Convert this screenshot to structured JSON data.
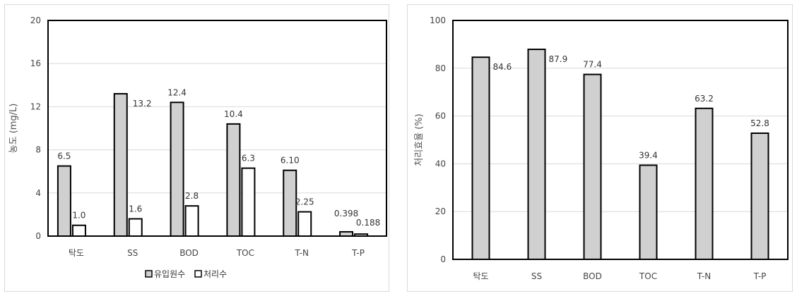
{
  "chart_data": [
    {
      "type": "bar",
      "ylabel": "농도 (mg/L)",
      "ylim": [
        0,
        20
      ],
      "yticks": [
        0,
        4,
        8,
        12,
        16,
        20
      ],
      "grid": true,
      "legend_position": "bottom",
      "categories": [
        "탁도",
        "SS",
        "BOD",
        "TOC",
        "T-N",
        "T-P"
      ],
      "series": [
        {
          "name": "유입원수",
          "color": "#d0d0d0",
          "values": [
            6.5,
            13.2,
            12.4,
            10.4,
            6.1,
            0.398
          ],
          "labels": [
            "6.5",
            "13.2",
            "12.4",
            "10.4",
            "6.10",
            "0.398"
          ]
        },
        {
          "name": "처리수",
          "color": "#ffffff",
          "values": [
            1.0,
            1.6,
            2.8,
            6.3,
            2.25,
            0.188
          ],
          "labels": [
            "1.0",
            "1.6",
            "2.8",
            "6.3",
            "2.25",
            "0.188"
          ]
        }
      ]
    },
    {
      "type": "bar",
      "ylabel": "처리효율 (%)",
      "ylim": [
        0,
        100
      ],
      "yticks": [
        0,
        20,
        40,
        60,
        80,
        100
      ],
      "grid": true,
      "categories": [
        "탁도",
        "SS",
        "BOD",
        "TOC",
        "T-N",
        "T-P"
      ],
      "series": [
        {
          "color": "#d0d0d0",
          "values": [
            84.6,
            87.9,
            77.4,
            39.4,
            63.2,
            52.8
          ],
          "labels": [
            "84.6",
            "87.9",
            "77.4",
            "39.4",
            "63.2",
            "52.8"
          ]
        }
      ]
    }
  ]
}
